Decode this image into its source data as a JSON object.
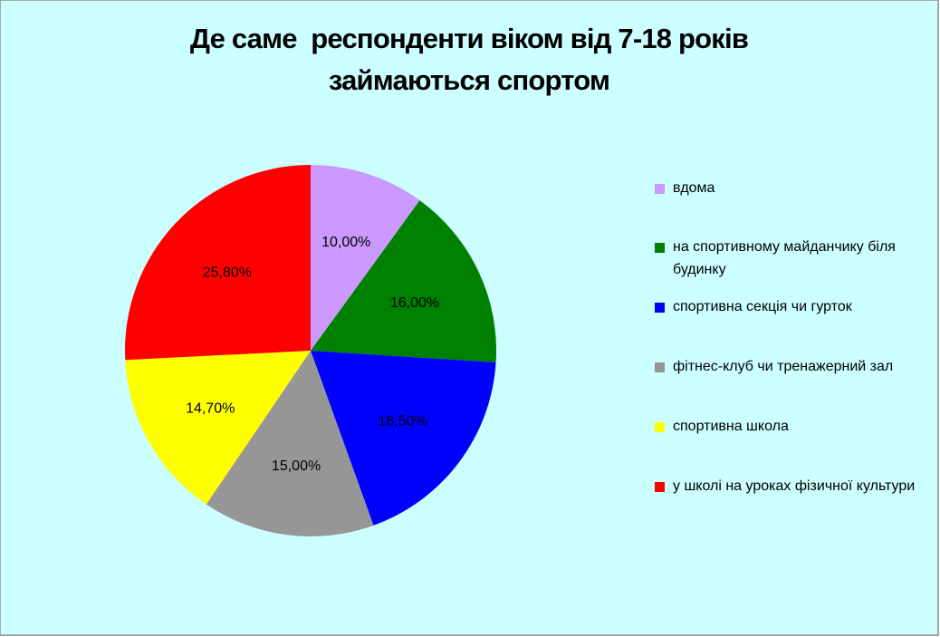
{
  "chart_data": {
    "type": "pie",
    "title_line1": "Де саме  респонденти віком від 7-18 років",
    "title_line2": "займаються спортом",
    "categories": [
      "вдома",
      "на спортивному майданчику біля будинку",
      "спортивна секція чи гурток",
      "фітнес-клуб чи тренажерний зал",
      "спортивна школа",
      "у школі на уроках фізичної культури"
    ],
    "values": [
      10.0,
      16.0,
      18.5,
      15.0,
      14.7,
      25.8
    ],
    "data_labels": [
      "10,00%",
      "16,00%",
      "18,50%",
      "15,00%",
      "14,70%",
      "25,80%"
    ],
    "colors": [
      "#cc99ff",
      "#008000",
      "#0000ff",
      "#969696",
      "#ffff00",
      "#ff0000"
    ],
    "legend_position": "right",
    "background_color": "#ccffff"
  }
}
